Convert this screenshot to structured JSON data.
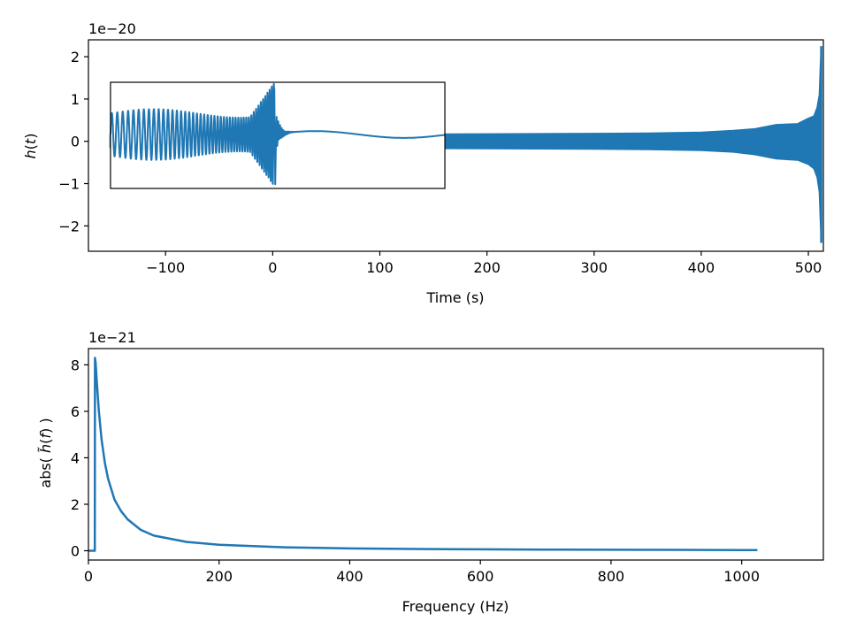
{
  "chart_data": [
    {
      "type": "line",
      "xlabel": "Time (s)",
      "ylabel": "h(t)",
      "offset_text": "1e−20",
      "xlim": [
        -172,
        514
      ],
      "ylim": [
        -2.6,
        2.4
      ],
      "xticks": [
        -100,
        0,
        100,
        200,
        300,
        400,
        500
      ],
      "xtick_labels": [
        "−100",
        "0",
        "100",
        "200",
        "300",
        "400",
        "500"
      ],
      "yticks": [
        -2,
        -1,
        0,
        1,
        2
      ],
      "ytick_labels": [
        "−2",
        "−1",
        "0",
        "1",
        "2"
      ],
      "color": "#1f77b4",
      "series": [
        {
          "kind": "envelope",
          "x": [
            -152,
            0,
            100,
            200,
            300,
            350,
            400,
            430,
            450,
            470,
            490,
            500,
            505,
            508,
            510,
            511,
            512
          ],
          "upper": [
            0.15,
            0.16,
            0.17,
            0.18,
            0.19,
            0.2,
            0.22,
            0.26,
            0.3,
            0.4,
            0.42,
            0.55,
            0.6,
            0.8,
            1.1,
            1.8,
            2.25
          ],
          "lower": [
            -0.15,
            -0.16,
            -0.17,
            -0.18,
            -0.19,
            -0.2,
            -0.22,
            -0.26,
            -0.32,
            -0.42,
            -0.45,
            -0.55,
            -0.65,
            -0.85,
            -1.2,
            -1.9,
            -2.4
          ]
        }
      ],
      "inset": {
        "xlim_fraction_of_parent": [
          0.03,
          0.485
        ],
        "ylim": [
          -1.1,
          1.4
        ],
        "merger_x_fraction": 0.49,
        "pre_merger_cycles": 30,
        "amplitude_before": 0.5,
        "amplitude_peak": 1.25,
        "amplitude_min": -1.0,
        "ringdown_amplitude": 0.2
      },
      "grid": false
    },
    {
      "type": "line",
      "xlabel": "Frequency (Hz)",
      "ylabel": "abs( h̃(f) )",
      "offset_text": "1e−21",
      "xlim": [
        0,
        1125
      ],
      "ylim": [
        -0.4,
        8.7
      ],
      "xticks": [
        0,
        200,
        400,
        600,
        800,
        1000
      ],
      "xtick_labels": [
        "0",
        "200",
        "400",
        "600",
        "800",
        "1000"
      ],
      "yticks": [
        0,
        2,
        4,
        6,
        8
      ],
      "ytick_labels": [
        "0",
        "2",
        "4",
        "6",
        "8"
      ],
      "color": "#1f77b4",
      "series": [
        {
          "x": [
            0,
            9.8,
            10,
            11,
            13,
            16,
            20,
            25,
            30,
            40,
            50,
            60,
            80,
            100,
            150,
            200,
            300,
            400,
            500,
            600,
            700,
            800,
            900,
            1000,
            1024
          ],
          "y": [
            0,
            0,
            8.3,
            8.1,
            7.2,
            6.0,
            4.8,
            3.8,
            3.1,
            2.2,
            1.7,
            1.35,
            0.9,
            0.65,
            0.38,
            0.26,
            0.15,
            0.1,
            0.075,
            0.06,
            0.05,
            0.042,
            0.036,
            0.031,
            0.03
          ]
        }
      ],
      "grid": false
    }
  ]
}
